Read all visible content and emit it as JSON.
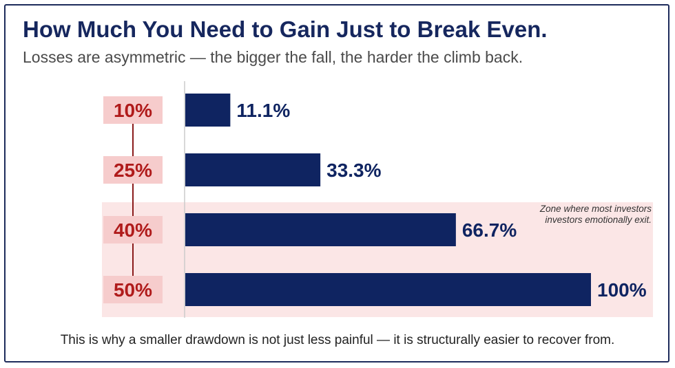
{
  "header": {
    "title": "How Much You Need to Gain Just to Break Even.",
    "subtitle": "Losses are asymmetric — the bigger the fall, the harder the climb back."
  },
  "footnote": "This is why a smaller drawdown is not just less painful — it is structurally easier to recover from.",
  "zone_note": "Zone where most investors investors emotionally exit.",
  "colors": {
    "bar": "#0f2461",
    "loss_label": "#b01b1b",
    "loss_label_bg": "#f6cccc",
    "zone_bg": "#fbe6e6",
    "connector": "#8a1a1a",
    "axis": "#cccccc",
    "title": "#16275e"
  },
  "chart_data": {
    "type": "bar",
    "orientation": "horizontal",
    "categories": [
      "10%",
      "25%",
      "40%",
      "50%"
    ],
    "values": [
      11.1,
      33.3,
      66.7,
      100
    ],
    "value_labels": [
      "11.1%",
      "33.3%",
      "66.7%",
      "100%"
    ],
    "xlim": [
      0,
      100
    ],
    "grid": false,
    "highlight_zone": {
      "categories": [
        "40%",
        "50%"
      ]
    }
  }
}
